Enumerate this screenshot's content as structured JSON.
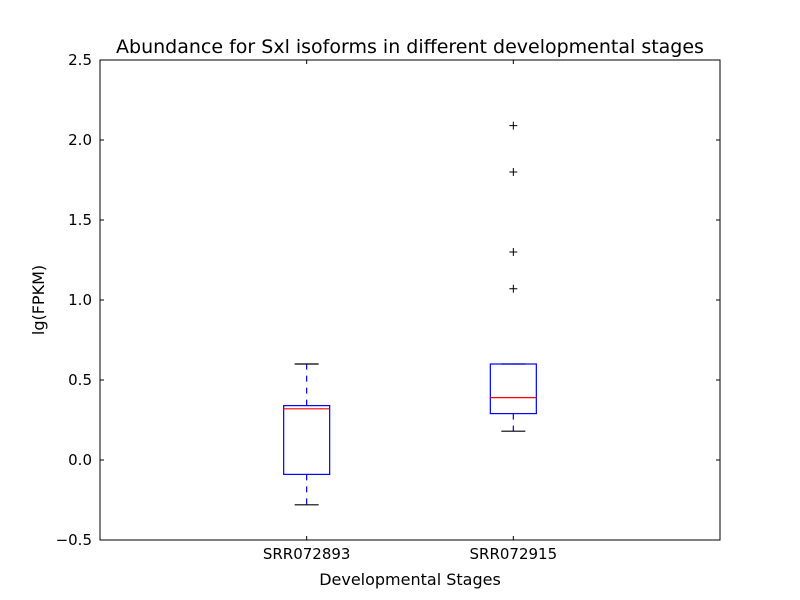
{
  "chart_data": {
    "type": "box",
    "title": "Abundance for Sxl isoforms in different developmental stages",
    "xlabel": "Developmental Stages",
    "ylabel": "lg(FPKM)",
    "ylim": [
      -0.5,
      2.5
    ],
    "yticks": [
      -0.5,
      0.0,
      0.5,
      1.0,
      1.5,
      2.0,
      2.5
    ],
    "ytick_labels": [
      "−0.5",
      "0.0",
      "0.5",
      "1.0",
      "1.5",
      "2.0",
      "2.5"
    ],
    "categories": [
      "SRR072893",
      "SRR072915"
    ],
    "boxes": [
      {
        "category": "SRR072893",
        "whisker_low": -0.28,
        "q1": -0.09,
        "median": 0.32,
        "q3": 0.34,
        "whisker_high": 0.6,
        "outliers": []
      },
      {
        "category": "SRR072915",
        "whisker_low": 0.18,
        "q1": 0.29,
        "median": 0.39,
        "q3": 0.6,
        "whisker_high": 0.6,
        "outliers": [
          1.07,
          1.3,
          1.8,
          2.09
        ]
      }
    ],
    "grid": false,
    "colors": {
      "box": "#0000ff",
      "median": "#ff0000",
      "whisker": "#0000ff",
      "cap": "#000000",
      "outlier": "#000000",
      "axes": "#000000"
    }
  }
}
